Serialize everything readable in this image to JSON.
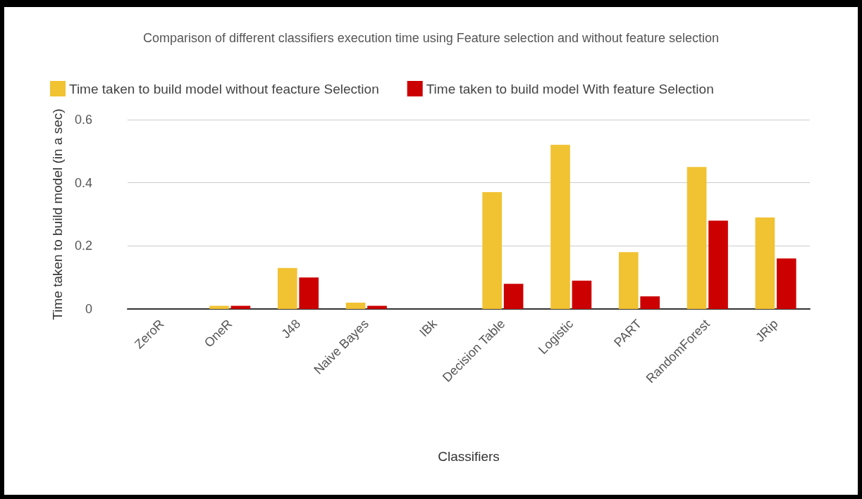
{
  "chart_data": {
    "type": "bar",
    "title": "Comparison of different classifiers execution time using Feature selection and without feature selection",
    "xlabel": "Classifiers",
    "ylabel": "Time taken to build model (in a sec)",
    "categories": [
      "ZeroR",
      "OneR",
      "J48",
      "Naive Bayes",
      "IBk",
      "Decision Table",
      "Logistic",
      "PART",
      "RandomForest",
      "JRip"
    ],
    "series": [
      {
        "name": "Time taken to build model without feacture Selection",
        "color": "#f1c232",
        "values": [
          0,
          0.01,
          0.13,
          0.02,
          0,
          0.37,
          0.52,
          0.18,
          0.45,
          0.29
        ]
      },
      {
        "name": "Time taken to build model With feature Selection",
        "color": "#cc0000",
        "values": [
          0,
          0.01,
          0.1,
          0.01,
          0,
          0.08,
          0.09,
          0.04,
          0.28,
          0.16
        ]
      }
    ],
    "ylim": [
      0,
      0.6
    ],
    "yticks": [
      0,
      0.2,
      0.4,
      0.6
    ],
    "grid": "y",
    "legend": "top left"
  }
}
